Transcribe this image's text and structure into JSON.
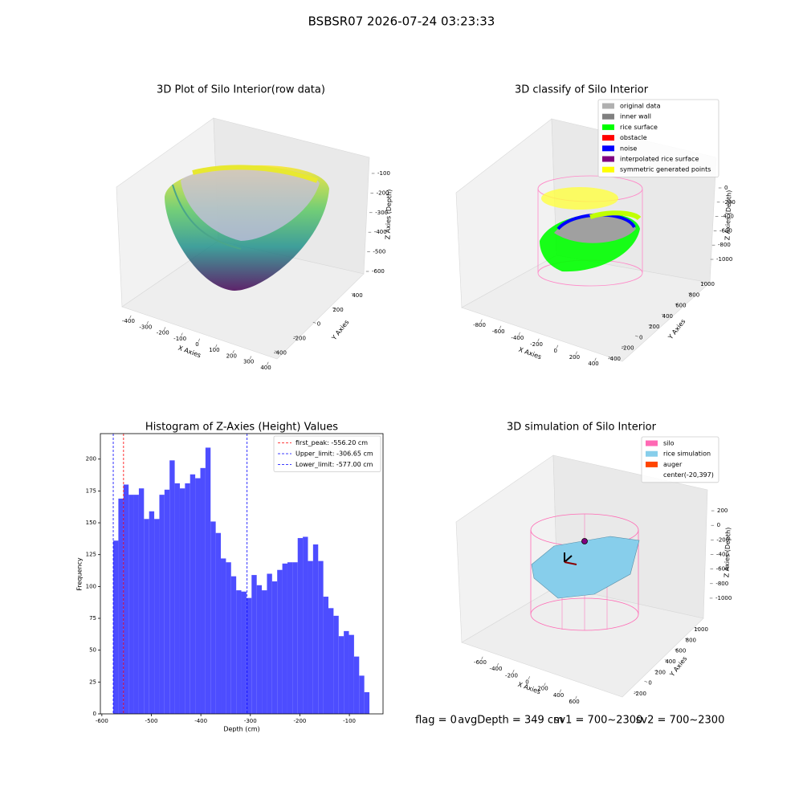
{
  "title": "BSBSR07 2026-07-24 03:23:33",
  "chart_data": [
    {
      "type": "scatter3d",
      "title": "3D Plot of Silo Interior(row data)",
      "xlabel": "X Axies",
      "ylabel": "Y Axies",
      "zlabel": "Z Axies (Depth)",
      "xlim": [
        -450,
        450
      ],
      "xticks": [
        -400,
        -300,
        -200,
        -100,
        0,
        100,
        200,
        300,
        400
      ],
      "ylim": [
        -450,
        450
      ],
      "yticks": [
        -400,
        -200,
        0,
        200,
        400
      ],
      "zlim": [
        -650,
        -60
      ],
      "zticks": [
        -600,
        -500,
        -400,
        -300,
        -200,
        -100
      ]
    },
    {
      "type": "scatter3d",
      "title": "3D classify of Silo Interior",
      "xlabel": "X Axies",
      "ylabel": "Y Axies",
      "zlabel": "Z Axies (Depth)",
      "xlim": [
        -900,
        500
      ],
      "xticks": [
        -800,
        -600,
        -400,
        -200,
        0,
        200,
        400
      ],
      "ylim": [
        -450,
        1050
      ],
      "yticks": [
        -400,
        -200,
        0,
        200,
        400,
        600,
        800,
        1000
      ],
      "zlim": [
        -1100,
        100
      ],
      "zticks": [
        -1000,
        -800,
        -600,
        -400,
        -200,
        0
      ],
      "legend": [
        {
          "name": "original data",
          "color": "#b0b0b0"
        },
        {
          "name": "inner wall",
          "color": "#808080"
        },
        {
          "name": "rice surface",
          "color": "#00ff00"
        },
        {
          "name": "obstacle",
          "color": "#ff0000"
        },
        {
          "name": "noise",
          "color": "#0000ff"
        },
        {
          "name": "interpolated rice surface",
          "color": "#800080"
        },
        {
          "name": "symmetric generated points",
          "color": "#ffff00"
        }
      ]
    },
    {
      "type": "hist",
      "title": "Histogram of Z-Axies (Height) Values",
      "xlabel": "Depth (cm)",
      "ylabel": "Frequency",
      "color": "#4d4dff",
      "bins": [
        -577.0,
        -566.65,
        -556.3,
        -545.95,
        -535.6,
        -525.25,
        -514.9,
        -504.55,
        -494.2,
        -483.85,
        -473.5,
        -463.15,
        -452.8,
        -442.45,
        -432.1,
        -421.75,
        -411.4,
        -401.05,
        -390.7,
        -380.35,
        -370.0,
        -359.65,
        -349.3,
        -338.95,
        -328.6,
        -318.25,
        -307.9,
        -297.55,
        -287.2,
        -276.85,
        -266.5,
        -256.15,
        -245.8,
        -235.45,
        -225.1,
        -214.75,
        -204.4,
        -194.05,
        -183.7,
        -173.35,
        -163.0,
        -152.65,
        -142.3,
        -131.95,
        -121.6,
        -111.25,
        -100.9,
        -90.55,
        -80.2,
        -69.85,
        -59.5
      ],
      "counts": [
        136,
        169,
        180,
        172,
        172,
        177,
        153,
        159,
        153,
        172,
        176,
        199,
        181,
        177,
        181,
        188,
        185,
        193,
        209,
        151,
        142,
        122,
        119,
        108,
        97,
        96,
        91,
        109,
        101,
        97,
        110,
        104,
        113,
        118,
        119,
        119,
        138,
        139,
        120,
        133,
        120,
        92,
        83,
        77,
        61,
        65,
        62,
        45,
        30,
        17
      ],
      "xlim": [
        -603,
        -32
      ],
      "xticks": [
        -600,
        -500,
        -400,
        -300,
        -200,
        -100
      ],
      "ylim": [
        0,
        220
      ],
      "yticks": [
        0,
        25,
        50,
        75,
        100,
        125,
        150,
        175,
        200
      ],
      "lines": [
        {
          "name": "first_peak: -556.20 cm",
          "value": -556.2,
          "color": "#ff0000"
        },
        {
          "name": "Upper_limit: -306.65 cm",
          "value": -306.65,
          "color": "#0000ff"
        },
        {
          "name": "Lower_limit: -577.00 cm",
          "value": -577.0,
          "color": "#0000ff"
        }
      ]
    },
    {
      "type": "surface3d",
      "title": "3D simulation of Silo Interior",
      "xlabel": "X Axies",
      "ylabel": "Y Axies",
      "zlabel": "Z Axies (Depth)",
      "xlim": [
        -700,
        700
      ],
      "xticks": [
        -600,
        -400,
        -200,
        0,
        200,
        400,
        600
      ],
      "ylim": [
        -300,
        1100
      ],
      "yticks": [
        -200,
        0,
        200,
        400,
        600,
        800,
        1000
      ],
      "zlim": [
        -1100,
        300
      ],
      "zticks": [
        -1000,
        -800,
        -600,
        -400,
        -200,
        0,
        200
      ],
      "legend": [
        {
          "name": "silo",
          "color": "#ff69b4"
        },
        {
          "name": "rice simulation",
          "color": "#87ceeb"
        },
        {
          "name": "auger",
          "color": "#ff4500"
        },
        {
          "name": "center(-20,397)"
        }
      ]
    }
  ],
  "footer": [
    "flag = 0",
    "avgDepth = 349 cm",
    "sv1 = 700~2300",
    "sv2 = 700~2300"
  ]
}
